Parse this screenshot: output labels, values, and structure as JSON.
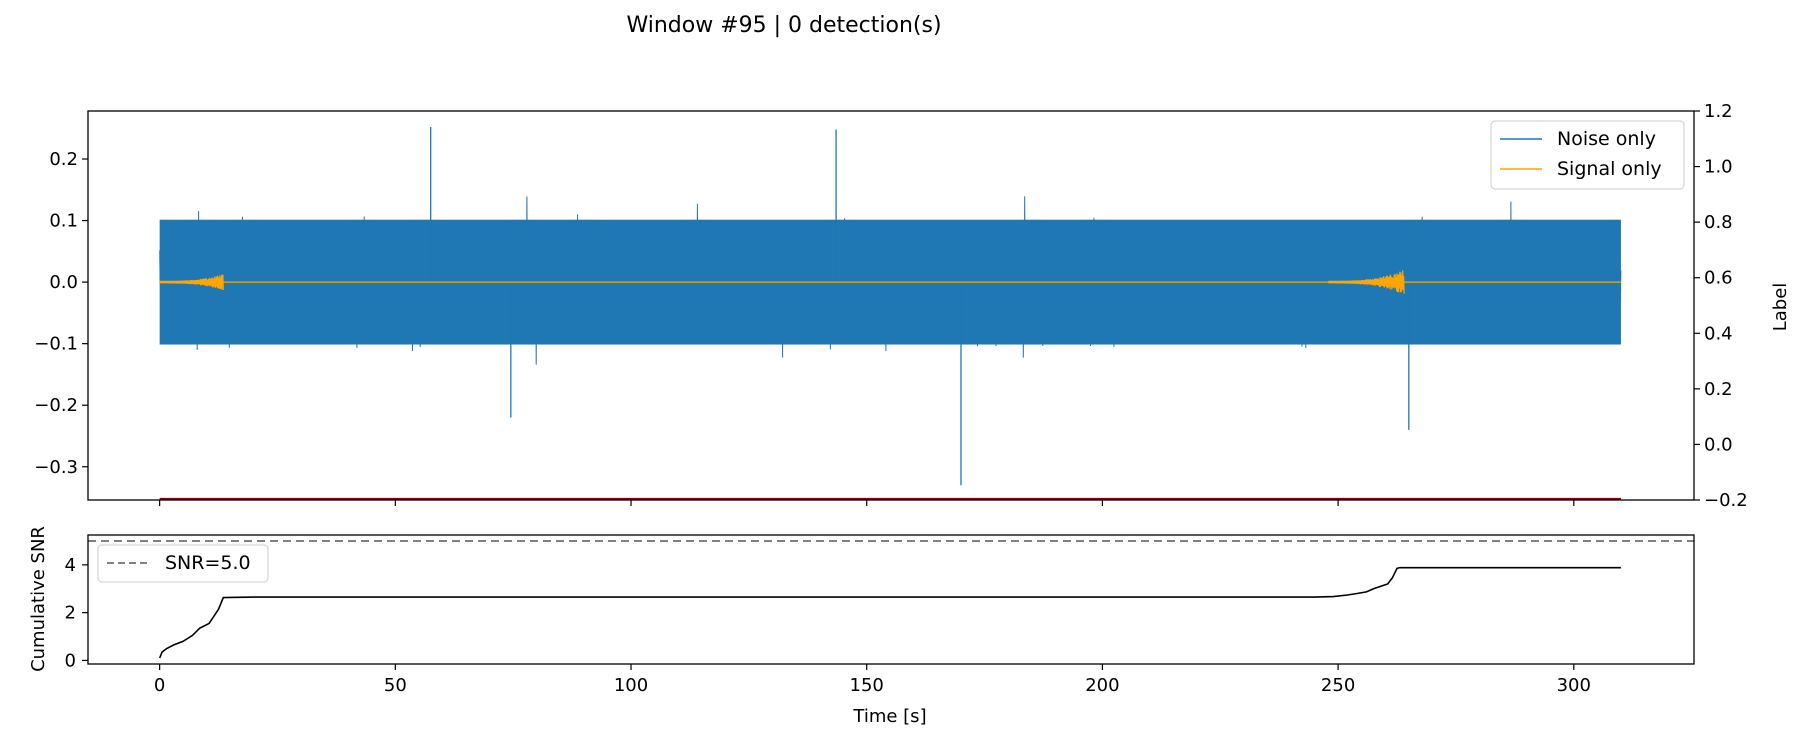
{
  "figure": {
    "title": "Window #95 | 0 detection(s)"
  },
  "chart_data": [
    {
      "type": "line",
      "panel": "waveform",
      "xlim": [
        -15.2,
        325.5
      ],
      "ylim": [
        -0.354,
        0.278
      ],
      "yticks": [
        -0.3,
        -0.2,
        -0.1,
        0.0,
        0.1,
        0.2
      ],
      "ytick_labels": [
        "−0.3",
        "−0.2",
        "−0.1",
        "0.0",
        "0.1",
        "0.2"
      ],
      "xtick_positions": [
        0,
        50,
        100,
        150,
        200,
        250,
        300
      ],
      "xtick_labels_shown": false,
      "right_axis": {
        "label": "Label",
        "ylim": [
          -0.2,
          1.2
        ],
        "yticks": [
          -0.2,
          0.0,
          0.2,
          0.4,
          0.6,
          0.8,
          1.0,
          1.2
        ],
        "ytick_labels": [
          "−0.2",
          "0.0",
          "0.2",
          "0.4",
          "0.6",
          "0.8",
          "1.0",
          "1.2"
        ]
      },
      "legend": {
        "placement": "upper right",
        "entries": [
          "Noise only",
          "Signal only"
        ]
      },
      "series": [
        {
          "name": "Noise only",
          "color": "#1f77b4",
          "x_range": [
            0,
            310
          ],
          "typical_amplitude": 0.13,
          "peaks": [
            {
              "x": 57.5,
              "y": 0.252
            },
            {
              "x": 143.5,
              "y": 0.248
            },
            {
              "x": 170.0,
              "y": -0.33
            },
            {
              "x": 265.0,
              "y": -0.24
            },
            {
              "x": 74.5,
              "y": -0.22
            }
          ]
        },
        {
          "name": "Signal only",
          "color": "#ffa500",
          "x_range": [
            0,
            310
          ],
          "bursts": [
            {
              "x_start": 0,
              "x_end": 13.5,
              "amplitude": 0.012
            },
            {
              "x_start": 248,
              "x_end": 264,
              "amplitude": 0.02
            }
          ]
        },
        {
          "name": "",
          "axis": "right",
          "color": "#8b0000",
          "x": [
            0,
            310
          ],
          "y": [
            -0.2,
            -0.2
          ]
        }
      ]
    },
    {
      "type": "line",
      "panel": "cumulative-snr",
      "xlabel": "Time [s]",
      "ylabel": "Cumulative SNR",
      "xlim": [
        -15.2,
        325.5
      ],
      "ylim": [
        -0.15,
        5.25
      ],
      "xticks": [
        0,
        50,
        100,
        150,
        200,
        250,
        300
      ],
      "xtick_labels": [
        "0",
        "50",
        "100",
        "150",
        "200",
        "250",
        "300"
      ],
      "yticks": [
        0,
        2,
        4
      ],
      "ytick_labels": [
        "0",
        "2",
        "4"
      ],
      "legend": {
        "placement": "upper left",
        "entries": [
          "SNR=5.0"
        ]
      },
      "threshold": {
        "name": "SNR=5.0",
        "y": 5.0,
        "color": "#808080"
      },
      "series": [
        {
          "name": "",
          "color": "#000000",
          "x": [
            0,
            0.5,
            1.5,
            3,
            5,
            7,
            8.5,
            9.5,
            10.5,
            11.5,
            12.5,
            13.5,
            20,
            100,
            200,
            245,
            249,
            252,
            254,
            256,
            257.5,
            259,
            260.5,
            261.5,
            262.5,
            263,
            270,
            310
          ],
          "y": [
            0.1,
            0.35,
            0.5,
            0.65,
            0.8,
            1.05,
            1.35,
            1.45,
            1.55,
            1.85,
            2.15,
            2.63,
            2.65,
            2.65,
            2.65,
            2.65,
            2.67,
            2.74,
            2.8,
            2.87,
            3.0,
            3.1,
            3.2,
            3.45,
            3.85,
            3.88,
            3.88,
            3.88
          ]
        }
      ]
    }
  ]
}
